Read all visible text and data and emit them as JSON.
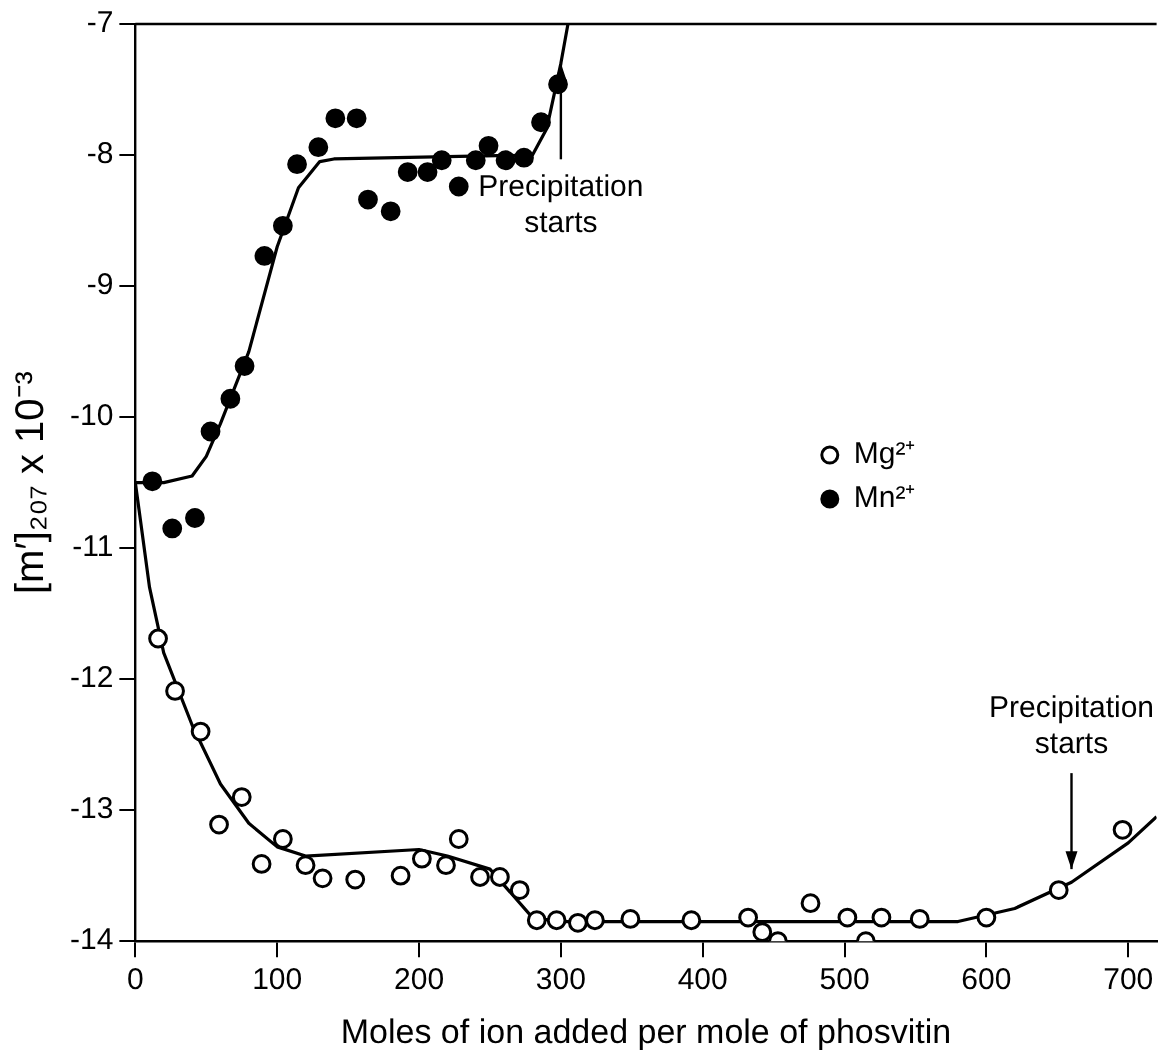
{
  "chart_data": {
    "type": "scatter",
    "xlabel": "Moles of ion added per mole of phosvitin",
    "ylabel": "[m′]₂₀₇ x 10⁻³",
    "xlim": [
      0,
      720
    ],
    "ylim": [
      -14,
      -7
    ],
    "xticks": [
      0,
      100,
      200,
      300,
      400,
      500,
      600,
      700
    ],
    "yticks": [
      -14,
      -13,
      -12,
      -11,
      -10,
      -9,
      -8,
      -7
    ],
    "grid": false,
    "legend": "right",
    "series": [
      {
        "name": "Mg²⁺",
        "color": "#000000",
        "marker": "circle",
        "x": [
          16,
          28,
          46,
          59,
          75,
          89,
          104,
          120,
          132,
          155,
          187,
          202,
          219,
          228,
          243,
          257,
          271,
          283,
          297,
          312,
          324,
          349,
          392,
          432,
          442,
          453,
          476,
          502,
          515,
          526,
          553,
          600,
          651,
          696
        ],
        "values": [
          -11.69,
          -12.09,
          -12.4,
          -13.11,
          -12.9,
          -13.41,
          -13.22,
          -13.42,
          -13.52,
          -13.53,
          -13.5,
          -13.37,
          -13.42,
          -13.22,
          -13.51,
          -13.51,
          -13.61,
          -13.84,
          -13.84,
          -13.86,
          -13.84,
          -13.83,
          -13.84,
          -13.82,
          -13.93,
          -14.0,
          -13.71,
          -13.82,
          -14.0,
          -13.82,
          -13.83,
          -13.82,
          -13.61,
          -13.15
        ]
      },
      {
        "name": "Mn²⁺",
        "color": "#000000",
        "marker": "circle",
        "x": [
          12,
          26,
          42,
          53,
          67,
          77,
          91,
          104,
          114,
          129,
          141,
          156,
          164,
          180,
          192,
          206,
          216,
          228,
          240,
          249,
          261,
          274,
          286,
          298
        ],
        "values": [
          -10.49,
          -10.85,
          -10.77,
          -10.11,
          -9.86,
          -9.61,
          -8.77,
          -8.54,
          -8.07,
          -7.94,
          -7.72,
          -7.72,
          -8.34,
          -8.43,
          -8.13,
          -8.13,
          -8.04,
          -8.24,
          -8.04,
          -7.93,
          -8.04,
          -8.02,
          -7.75,
          -7.46
        ]
      },
      {
        "type": "line",
        "color": "#000000",
        "marker": "none",
        "line_style": "solid",
        "x": [
          0,
          10,
          20,
          40,
          60,
          80,
          100,
          120,
          200,
          220,
          250,
          280,
          300,
          580,
          620,
          660,
          700,
          720
        ],
        "values": [
          -10.5,
          -11.3,
          -11.8,
          -12.35,
          -12.8,
          -13.1,
          -13.28,
          -13.35,
          -13.3,
          -13.35,
          -13.45,
          -13.82,
          -13.85,
          -13.85,
          -13.75,
          -13.55,
          -13.25,
          -13.05
        ]
      },
      {
        "type": "line",
        "color": "#000000",
        "marker": "none",
        "line_style": "solid",
        "x": [
          0,
          20,
          40,
          50,
          60,
          80,
          100,
          115,
          130,
          140,
          280,
          290,
          300,
          305
        ],
        "values": [
          -10.5,
          -10.5,
          -10.45,
          -10.3,
          -10.05,
          -9.5,
          -8.7,
          -8.25,
          -8.05,
          -8.03,
          -8.0,
          -7.8,
          -7.3,
          -7.0
        ]
      }
    ],
    "annotations": [
      {
        "text": "Precipitation starts",
        "x": 300,
        "y": -7.3
      },
      {
        "text": "Precipitation starts",
        "x": 660,
        "y": -13.45
      }
    ]
  }
}
